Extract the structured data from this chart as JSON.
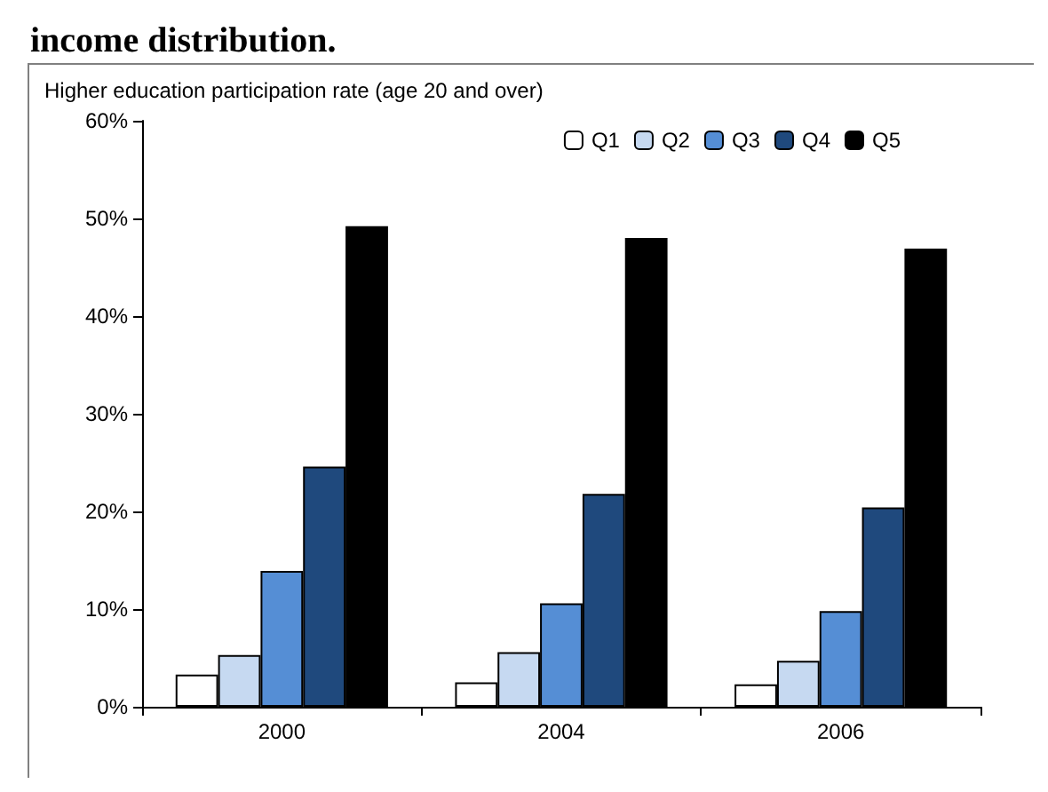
{
  "chart_data": {
    "type": "bar",
    "title": "income distribution.",
    "ylabel": "Higher education participation rate (age 20 and over)",
    "categories": [
      "2000",
      "2004",
      "2006"
    ],
    "series": [
      {
        "name": "Q1",
        "color": "#ffffff",
        "values": [
          3.3,
          2.5,
          2.3
        ]
      },
      {
        "name": "Q2",
        "color": "#c6d9f1",
        "values": [
          5.3,
          5.6,
          4.7
        ]
      },
      {
        "name": "Q3",
        "color": "#558ed5",
        "values": [
          13.9,
          10.6,
          9.8
        ]
      },
      {
        "name": "Q4",
        "color": "#1f497d",
        "values": [
          24.6,
          21.8,
          20.4
        ]
      },
      {
        "name": "Q5",
        "color": "#000000",
        "values": [
          49.2,
          48.0,
          46.9
        ]
      }
    ],
    "ylim": [
      0,
      60
    ],
    "yticks": [
      {
        "value": 0,
        "label": "0%"
      },
      {
        "value": 10,
        "label": "10%"
      },
      {
        "value": 20,
        "label": "20%"
      },
      {
        "value": 30,
        "label": "30%"
      },
      {
        "value": 40,
        "label": "40%"
      },
      {
        "value": 50,
        "label": "50%"
      },
      {
        "value": 60,
        "label": "60%"
      }
    ],
    "grid": false,
    "legend": "top right"
  }
}
